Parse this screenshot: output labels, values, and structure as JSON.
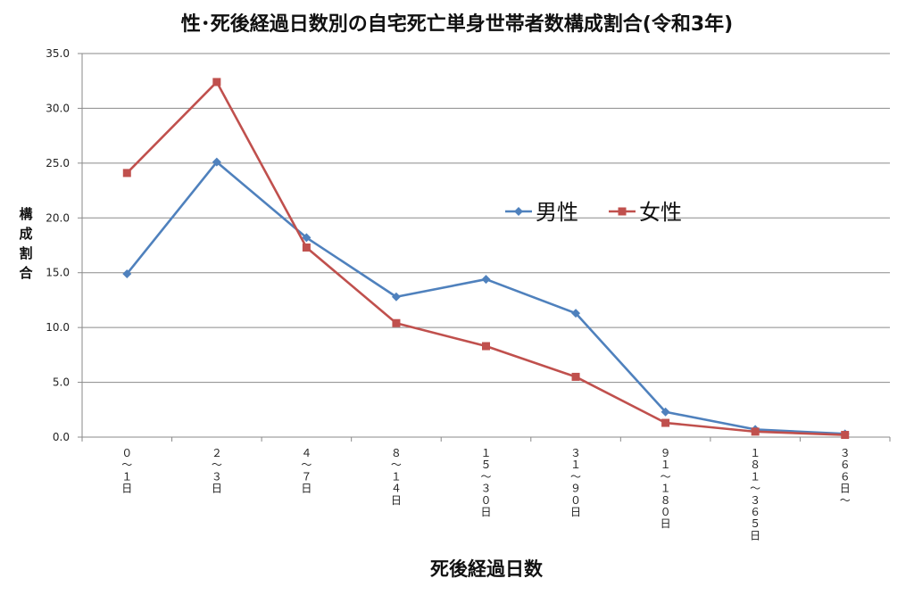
{
  "chart_data": {
    "type": "line",
    "title": "性･死後経過日数別の自宅死亡単身世帯者数構成割合(令和3年)",
    "xlabel": "死後経過日数",
    "ylabel": "構成割合",
    "categories": [
      "０〜１日",
      "２〜３日",
      "４〜７日",
      "８〜１４日",
      "１５〜３０日",
      "３１〜９０日",
      "９１〜１８０日",
      "１８１〜３６５日",
      "３６６日〜"
    ],
    "series": [
      {
        "name": "男性",
        "color": "#4F81BD",
        "marker": "diamond",
        "values": [
          14.9,
          25.1,
          18.2,
          12.8,
          14.4,
          11.3,
          2.3,
          0.7,
          0.3
        ]
      },
      {
        "name": "女性",
        "color": "#C0504D",
        "marker": "square",
        "values": [
          24.1,
          32.4,
          17.3,
          10.4,
          8.3,
          5.5,
          1.3,
          0.5,
          0.2
        ]
      }
    ],
    "ylim": [
      0,
      35
    ],
    "yticks": [
      "0.0",
      "5.0",
      "10.0",
      "15.0",
      "20.0",
      "25.0",
      "30.0",
      "35.0"
    ],
    "grid": true,
    "legend_position": "center-right"
  }
}
